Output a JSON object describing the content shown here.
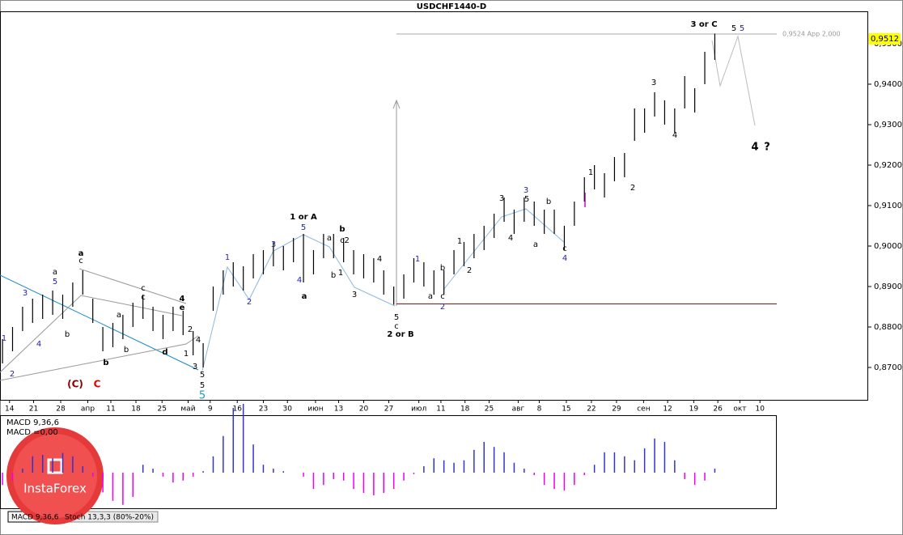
{
  "chart_data": [
    {
      "type": "ohlc",
      "title": "USDCHF1440-D",
      "high": [
        0.877,
        0.88,
        0.885,
        0.887,
        0.888,
        0.889,
        0.888,
        0.891,
        0.894,
        0.887,
        0.88,
        0.881,
        0.883,
        0.886,
        0.888,
        0.885,
        0.883,
        0.885,
        0.884,
        0.879,
        0.876,
        0.89,
        0.894,
        0.896,
        0.895,
        0.898,
        0.899,
        0.901,
        0.9,
        0.902,
        0.903,
        0.899,
        0.903,
        0.903,
        0.902,
        0.899,
        0.898,
        0.897,
        0.894,
        0.89,
        0.893,
        0.897,
        0.896,
        0.894,
        0.894,
        0.899,
        0.901,
        0.903,
        0.905,
        0.908,
        0.912,
        0.909,
        0.912,
        0.911,
        0.909,
        0.909,
        0.905,
        0.911,
        0.917,
        0.92,
        0.918,
        0.922,
        0.923,
        0.934,
        0.934,
        0.938,
        0.936,
        0.934,
        0.942,
        0.939,
        0.948,
        0.9525
      ],
      "low": [
        0.871,
        0.874,
        0.879,
        0.881,
        0.882,
        0.883,
        0.882,
        0.885,
        0.888,
        0.881,
        0.874,
        0.875,
        0.877,
        0.88,
        0.882,
        0.879,
        0.877,
        0.879,
        0.878,
        0.873,
        0.87,
        0.884,
        0.888,
        0.89,
        0.889,
        0.892,
        0.893,
        0.895,
        0.894,
        0.896,
        0.891,
        0.893,
        0.897,
        0.897,
        0.896,
        0.893,
        0.892,
        0.891,
        0.888,
        0.8855,
        0.887,
        0.891,
        0.89,
        0.888,
        0.888,
        0.893,
        0.895,
        0.897,
        0.899,
        0.902,
        0.906,
        0.903,
        0.906,
        0.905,
        0.903,
        0.903,
        0.899,
        0.905,
        0.911,
        0.914,
        0.912,
        0.916,
        0.917,
        0.926,
        0.928,
        0.932,
        0.93,
        0.928,
        0.934,
        0.933,
        0.94,
        0.946
      ],
      "color": "#000000",
      "ylim": [
        0.862,
        0.958
      ],
      "yticks": [
        {
          "value": 0.87,
          "label": "0,8700"
        },
        {
          "value": 0.88,
          "label": "0,8800"
        },
        {
          "value": 0.89,
          "label": "0,8900"
        },
        {
          "value": 0.9,
          "label": "0,9000"
        },
        {
          "value": 0.91,
          "label": "0,9100"
        },
        {
          "value": 0.92,
          "label": "0,9200"
        },
        {
          "value": 0.93,
          "label": "0,9300"
        },
        {
          "value": 0.94,
          "label": "0,9400"
        },
        {
          "value": 0.95,
          "label": "0,9500"
        }
      ],
      "xlim": [
        -0.25,
        77.2
      ],
      "xticks": [
        {
          "value": 0.7,
          "label": "14"
        },
        {
          "value": 3.1,
          "label": "21"
        },
        {
          "value": 5.8,
          "label": "28"
        },
        {
          "value": 8.5,
          "label": "апр"
        },
        {
          "value": 10.8,
          "label": "11"
        },
        {
          "value": 13.3,
          "label": "18"
        },
        {
          "value": 15.9,
          "label": "25"
        },
        {
          "value": 18.5,
          "label": "май"
        },
        {
          "value": 20.7,
          "label": "9"
        },
        {
          "value": 23.4,
          "label": "16"
        },
        {
          "value": 26,
          "label": "23"
        },
        {
          "value": 28.4,
          "label": "30"
        },
        {
          "value": 31.2,
          "label": "июн"
        },
        {
          "value": 33.5,
          "label": "13"
        },
        {
          "value": 36,
          "label": "20"
        },
        {
          "value": 38.5,
          "label": "27"
        },
        {
          "value": 41.5,
          "label": "июл"
        },
        {
          "value": 43.7,
          "label": "11"
        },
        {
          "value": 46.1,
          "label": "18"
        },
        {
          "value": 48.5,
          "label": "25"
        },
        {
          "value": 51.4,
          "label": "авг"
        },
        {
          "value": 53.5,
          "label": "8"
        },
        {
          "value": 56.2,
          "label": "15"
        },
        {
          "value": 58.7,
          "label": "22"
        },
        {
          "value": 61.2,
          "label": "29"
        },
        {
          "value": 63.9,
          "label": "сен"
        },
        {
          "value": 66.3,
          "label": "12"
        },
        {
          "value": 68.9,
          "label": "19"
        },
        {
          "value": 71.3,
          "label": "26"
        },
        {
          "value": 73.5,
          "label": "окт"
        },
        {
          "value": 75.5,
          "label": "10"
        }
      ],
      "current_price": {
        "value": 0.9512,
        "label": "0,9512"
      },
      "target_line": {
        "value": 0.9524,
        "label": "0,9524 App 2,000"
      },
      "support_line": 0.8857,
      "annotations": [
        "3 or C",
        "5",
        "5",
        "4",
        "?",
        "3",
        "4",
        "2",
        "1",
        "3",
        "5",
        "3",
        "b",
        "4",
        "a",
        "c",
        "4",
        "1",
        "2",
        "b",
        "c",
        "a",
        "2",
        "1",
        "5",
        "c",
        "2 or B",
        "4",
        "3",
        "1",
        "b",
        "a",
        "c2",
        "b",
        "1 or A",
        "5",
        "3",
        "4",
        "a",
        "1",
        "2",
        "5",
        "5",
        "5",
        "3",
        "1",
        "4",
        "2",
        "e",
        "4",
        "d",
        "c",
        "c",
        "a",
        "b",
        "b",
        "a",
        "c",
        "a",
        "5",
        "3",
        "4",
        "b",
        "1",
        "2",
        "(C)",
        "C"
      ]
    },
    {
      "type": "histogram-indicator",
      "title": "MACD 9,36,6",
      "subtitle": "MACD =0,00",
      "values": [
        -0.0025,
        -0.0016,
        0.0008,
        0.0033,
        0.0036,
        0.0029,
        0.004,
        0.0033,
        0.0013,
        -0.0008,
        -0.004,
        -0.0057,
        -0.0065,
        -0.0049,
        0.0016,
        0.0008,
        -0.0008,
        -0.002,
        -0.0016,
        -0.0008,
        0.0003,
        0.0033,
        0.0074,
        0.0131,
        0.0139,
        0.0057,
        0.0016,
        0.0008,
        0.0003,
        0,
        -0.0008,
        -0.0033,
        -0.0025,
        -0.0013,
        -0.0016,
        -0.0033,
        -0.0041,
        -0.0046,
        -0.0041,
        -0.0033,
        -0.0016,
        -0.0003,
        0.0013,
        0.0029,
        0.0025,
        0.002,
        0.0025,
        0.0046,
        0.0062,
        0.0052,
        0.0041,
        0.002,
        0.0008,
        -0.0005,
        -0.0025,
        -0.0033,
        -0.0036,
        -0.0025,
        -0.0005,
        0.0016,
        0.0041,
        0.0041,
        0.0033,
        0.0025,
        0.0049,
        0.0069,
        0.0062,
        0.0025,
        -0.0013,
        -0.0025,
        -0.0016,
        0.0008
      ],
      "positive_color": "#3333cc",
      "negative_color": "#ee00ee",
      "ylim": [
        -0.0072,
        0.017
      ],
      "tabs": [
        "MACD 9,36,6",
        "Stoch 13,3,3 (80%-20%)"
      ],
      "logo": "InstaForex"
    }
  ]
}
